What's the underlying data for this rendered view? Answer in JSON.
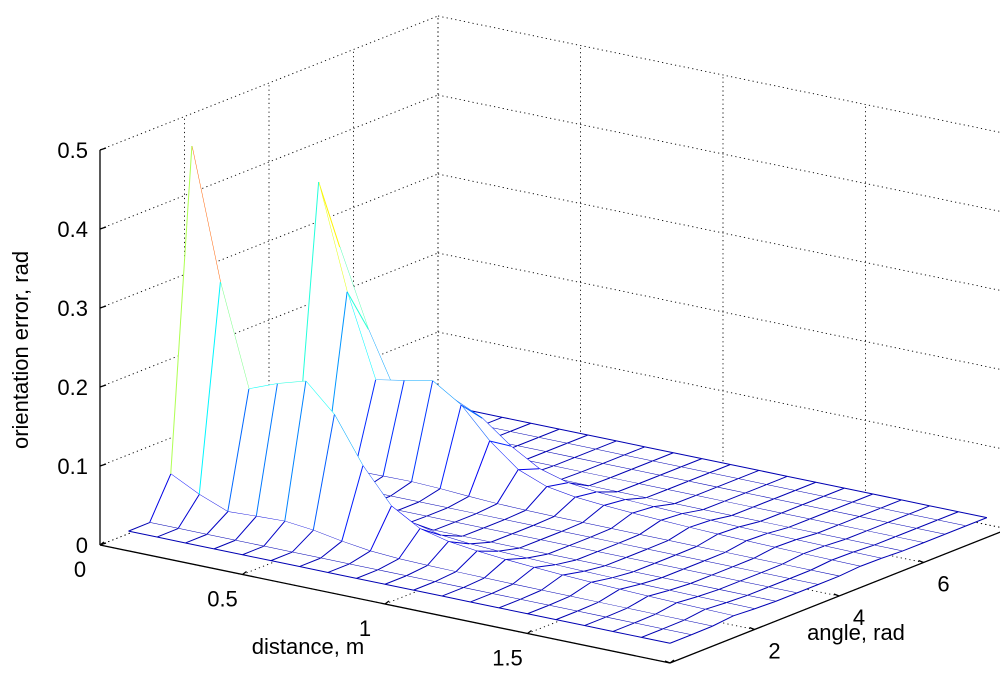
{
  "chart_data": {
    "type": "surface",
    "title": "",
    "xlabel": "distance, m",
    "ylabel": "angle, rad",
    "zlabel": "orientation error, rad",
    "xlim": [
      0,
      2
    ],
    "ylim": [
      0,
      8
    ],
    "zlim": [
      0,
      0.5
    ],
    "x_ticks": [
      "0",
      "0.5",
      "1",
      "1.5",
      "2"
    ],
    "y_ticks": [
      "0",
      "2",
      "4",
      "6",
      "8"
    ],
    "z_ticks": [
      "0",
      "0.1",
      "0.2",
      "0.3",
      "0.4",
      "0.5"
    ],
    "grid": true,
    "colormap": "jet",
    "surface_style": "mesh",
    "distance_values": [
      0.1,
      0.2,
      0.3,
      0.4,
      0.5,
      0.6,
      0.7,
      0.8,
      0.9,
      1.0,
      1.1,
      1.2,
      1.3,
      1.4,
      1.5,
      1.6,
      1.7,
      1.8,
      1.9,
      2.0
    ],
    "angle_values": [
      0,
      0.5,
      1,
      1.5,
      2,
      2.5,
      3,
      3.5,
      4,
      4.5,
      5,
      5.5,
      6,
      6.5,
      7,
      7.5
    ],
    "peaks": [
      {
        "angle": 1.6,
        "distance": 0.1,
        "orientation_error": 0.51
      },
      {
        "angle": 4.7,
        "distance": 0.1,
        "orientation_error": 0.47
      }
    ],
    "ridge_errors_at_distance_0_5": [
      0.2,
      0.16
    ]
  },
  "colors": {
    "grid": "#000000",
    "background": "#ffffff",
    "colormap_low": "#0000ff",
    "colormap_high": "#800000"
  }
}
